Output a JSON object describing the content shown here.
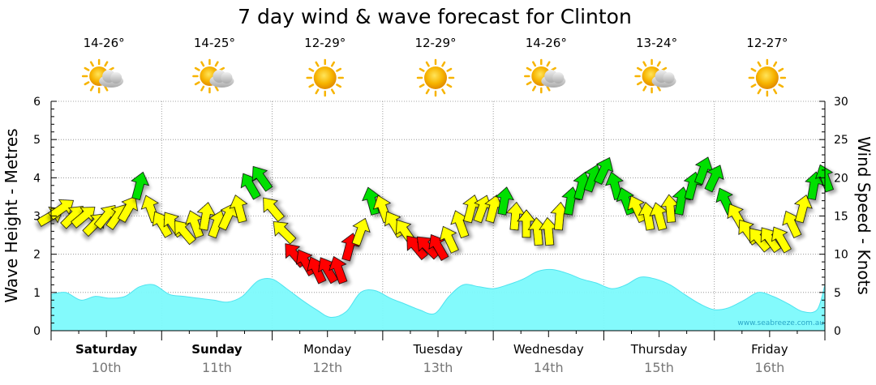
{
  "chart_data": {
    "type": "area",
    "title": "7 day wind & wave forecast for Clinton",
    "ylabel_left": "Wave Height - Metres",
    "ylabel_right": "Wind Speed - Knots",
    "left_ticks": [
      "0",
      "1",
      "2",
      "3",
      "4",
      "5",
      "6"
    ],
    "right_ticks": [
      "0",
      "5",
      "10",
      "15",
      "20",
      "25",
      "30"
    ],
    "ylim_left": [
      0,
      6
    ],
    "ylim_right": [
      0,
      30
    ],
    "days": [
      {
        "name": "Saturday",
        "date": "10th",
        "temp": "14-26°",
        "weather": "partly-cloudy",
        "bold": true
      },
      {
        "name": "Sunday",
        "date": "11th",
        "temp": "14-25°",
        "weather": "partly-cloudy",
        "bold": true
      },
      {
        "name": "Monday",
        "date": "12th",
        "temp": "12-29°",
        "weather": "sunny",
        "bold": false
      },
      {
        "name": "Tuesday",
        "date": "13th",
        "temp": "12-29°",
        "weather": "sunny",
        "bold": false
      },
      {
        "name": "Wednesday",
        "date": "14th",
        "temp": "14-26°",
        "weather": "partly-cloudy",
        "bold": false
      },
      {
        "name": "Thursday",
        "date": "15th",
        "temp": "13-24°",
        "weather": "partly-cloudy",
        "bold": false
      },
      {
        "name": "Friday",
        "date": "16th",
        "temp": "12-27°",
        "weather": "sunny",
        "bold": false
      }
    ],
    "wave_series": {
      "name": "Wave Height (m)",
      "x_days": [
        0,
        0.13,
        0.27,
        0.4,
        0.53,
        0.67,
        0.8,
        0.93,
        1.07,
        1.2,
        1.33,
        1.47,
        1.6,
        1.73,
        1.87,
        2.0,
        2.13,
        2.27,
        2.4,
        2.53,
        2.67,
        2.8,
        2.93,
        3.07,
        3.2,
        3.33,
        3.47,
        3.6,
        3.73,
        3.87,
        4.0,
        4.13,
        4.27,
        4.4,
        4.53,
        4.67,
        4.8,
        4.93,
        5.07,
        5.2,
        5.33,
        5.47,
        5.6,
        5.73,
        5.87,
        6.0,
        6.13,
        6.27,
        6.4,
        6.53,
        6.67,
        6.8,
        6.93,
        7.0
      ],
      "values": [
        0.95,
        1.0,
        0.8,
        0.9,
        0.85,
        0.9,
        1.15,
        1.2,
        0.95,
        0.9,
        0.85,
        0.8,
        0.75,
        0.9,
        1.3,
        1.35,
        1.1,
        0.8,
        0.55,
        0.35,
        0.5,
        1.0,
        1.05,
        0.85,
        0.7,
        0.55,
        0.45,
        0.9,
        1.2,
        1.15,
        1.1,
        1.2,
        1.35,
        1.55,
        1.6,
        1.5,
        1.35,
        1.25,
        1.1,
        1.2,
        1.4,
        1.35,
        1.2,
        0.95,
        0.7,
        0.55,
        0.6,
        0.8,
        1.0,
        0.9,
        0.7,
        0.5,
        0.55,
        1.2
      ]
    },
    "wind_series": {
      "name": "Wind Speed (knots)",
      "x_days": [
        0,
        0.1,
        0.2,
        0.3,
        0.4,
        0.5,
        0.6,
        0.7,
        0.8,
        0.9,
        1.0,
        1.1,
        1.2,
        1.3,
        1.4,
        1.5,
        1.6,
        1.7,
        1.8,
        1.9,
        2.0,
        2.1,
        2.2,
        2.3,
        2.4,
        2.5,
        2.6,
        2.7,
        2.8,
        2.9,
        3.0,
        3.1,
        3.2,
        3.3,
        3.4,
        3.5,
        3.6,
        3.7,
        3.8,
        3.9,
        4.0,
        4.1,
        4.2,
        4.3,
        4.4,
        4.5,
        4.6,
        4.7,
        4.8,
        4.9,
        5.0,
        5.1,
        5.2,
        5.3,
        5.4,
        5.5,
        5.6,
        5.7,
        5.8,
        5.9,
        6.0,
        6.1,
        6.2,
        6.3,
        6.4,
        6.5,
        6.6,
        6.7,
        6.8,
        6.9,
        7.0
      ],
      "knots": [
        15,
        16,
        15,
        15,
        14,
        15,
        15,
        16,
        19,
        16,
        14,
        14,
        13,
        14,
        15,
        14,
        15,
        16,
        19,
        20,
        16,
        13,
        10,
        9,
        8,
        8,
        8,
        11,
        13,
        17,
        16,
        14,
        13,
        11,
        11,
        11,
        12,
        14,
        16,
        16,
        16,
        17,
        15,
        14,
        13,
        13,
        15,
        17,
        19,
        20,
        21,
        19,
        17,
        16,
        15,
        15,
        16,
        17,
        19,
        21,
        20,
        17,
        15,
        13,
        12,
        12,
        12,
        14,
        16,
        19,
        20
      ],
      "direction_deg": [
        60,
        55,
        45,
        50,
        45,
        40,
        35,
        30,
        15,
        -20,
        -30,
        -35,
        -40,
        -20,
        10,
        20,
        25,
        -15,
        -30,
        -35,
        -40,
        -45,
        -40,
        -30,
        -25,
        -30,
        -20,
        15,
        20,
        -15,
        -20,
        -30,
        -35,
        -40,
        -45,
        -30,
        -25,
        -20,
        15,
        20,
        15,
        10,
        5,
        0,
        -5,
        -5,
        5,
        10,
        15,
        20,
        25,
        -15,
        -20,
        -25,
        -10,
        -15,
        -5,
        10,
        15,
        20,
        25,
        -25,
        -30,
        -35,
        -40,
        -35,
        -30,
        -25,
        15,
        10,
        -20
      ],
      "speed_colors": {
        "low": "#ffff00",
        "medium": "#00e000",
        "high": "#ff0000"
      }
    },
    "credit": "www.seabreeze.com.au"
  },
  "colors": {
    "wave_fill": "#7cfafc",
    "wave_stroke": "#4ee3ef",
    "grid": "#888888",
    "axis": "#000000",
    "sun": "#f7b400",
    "cloud": "#c8c8c8"
  }
}
